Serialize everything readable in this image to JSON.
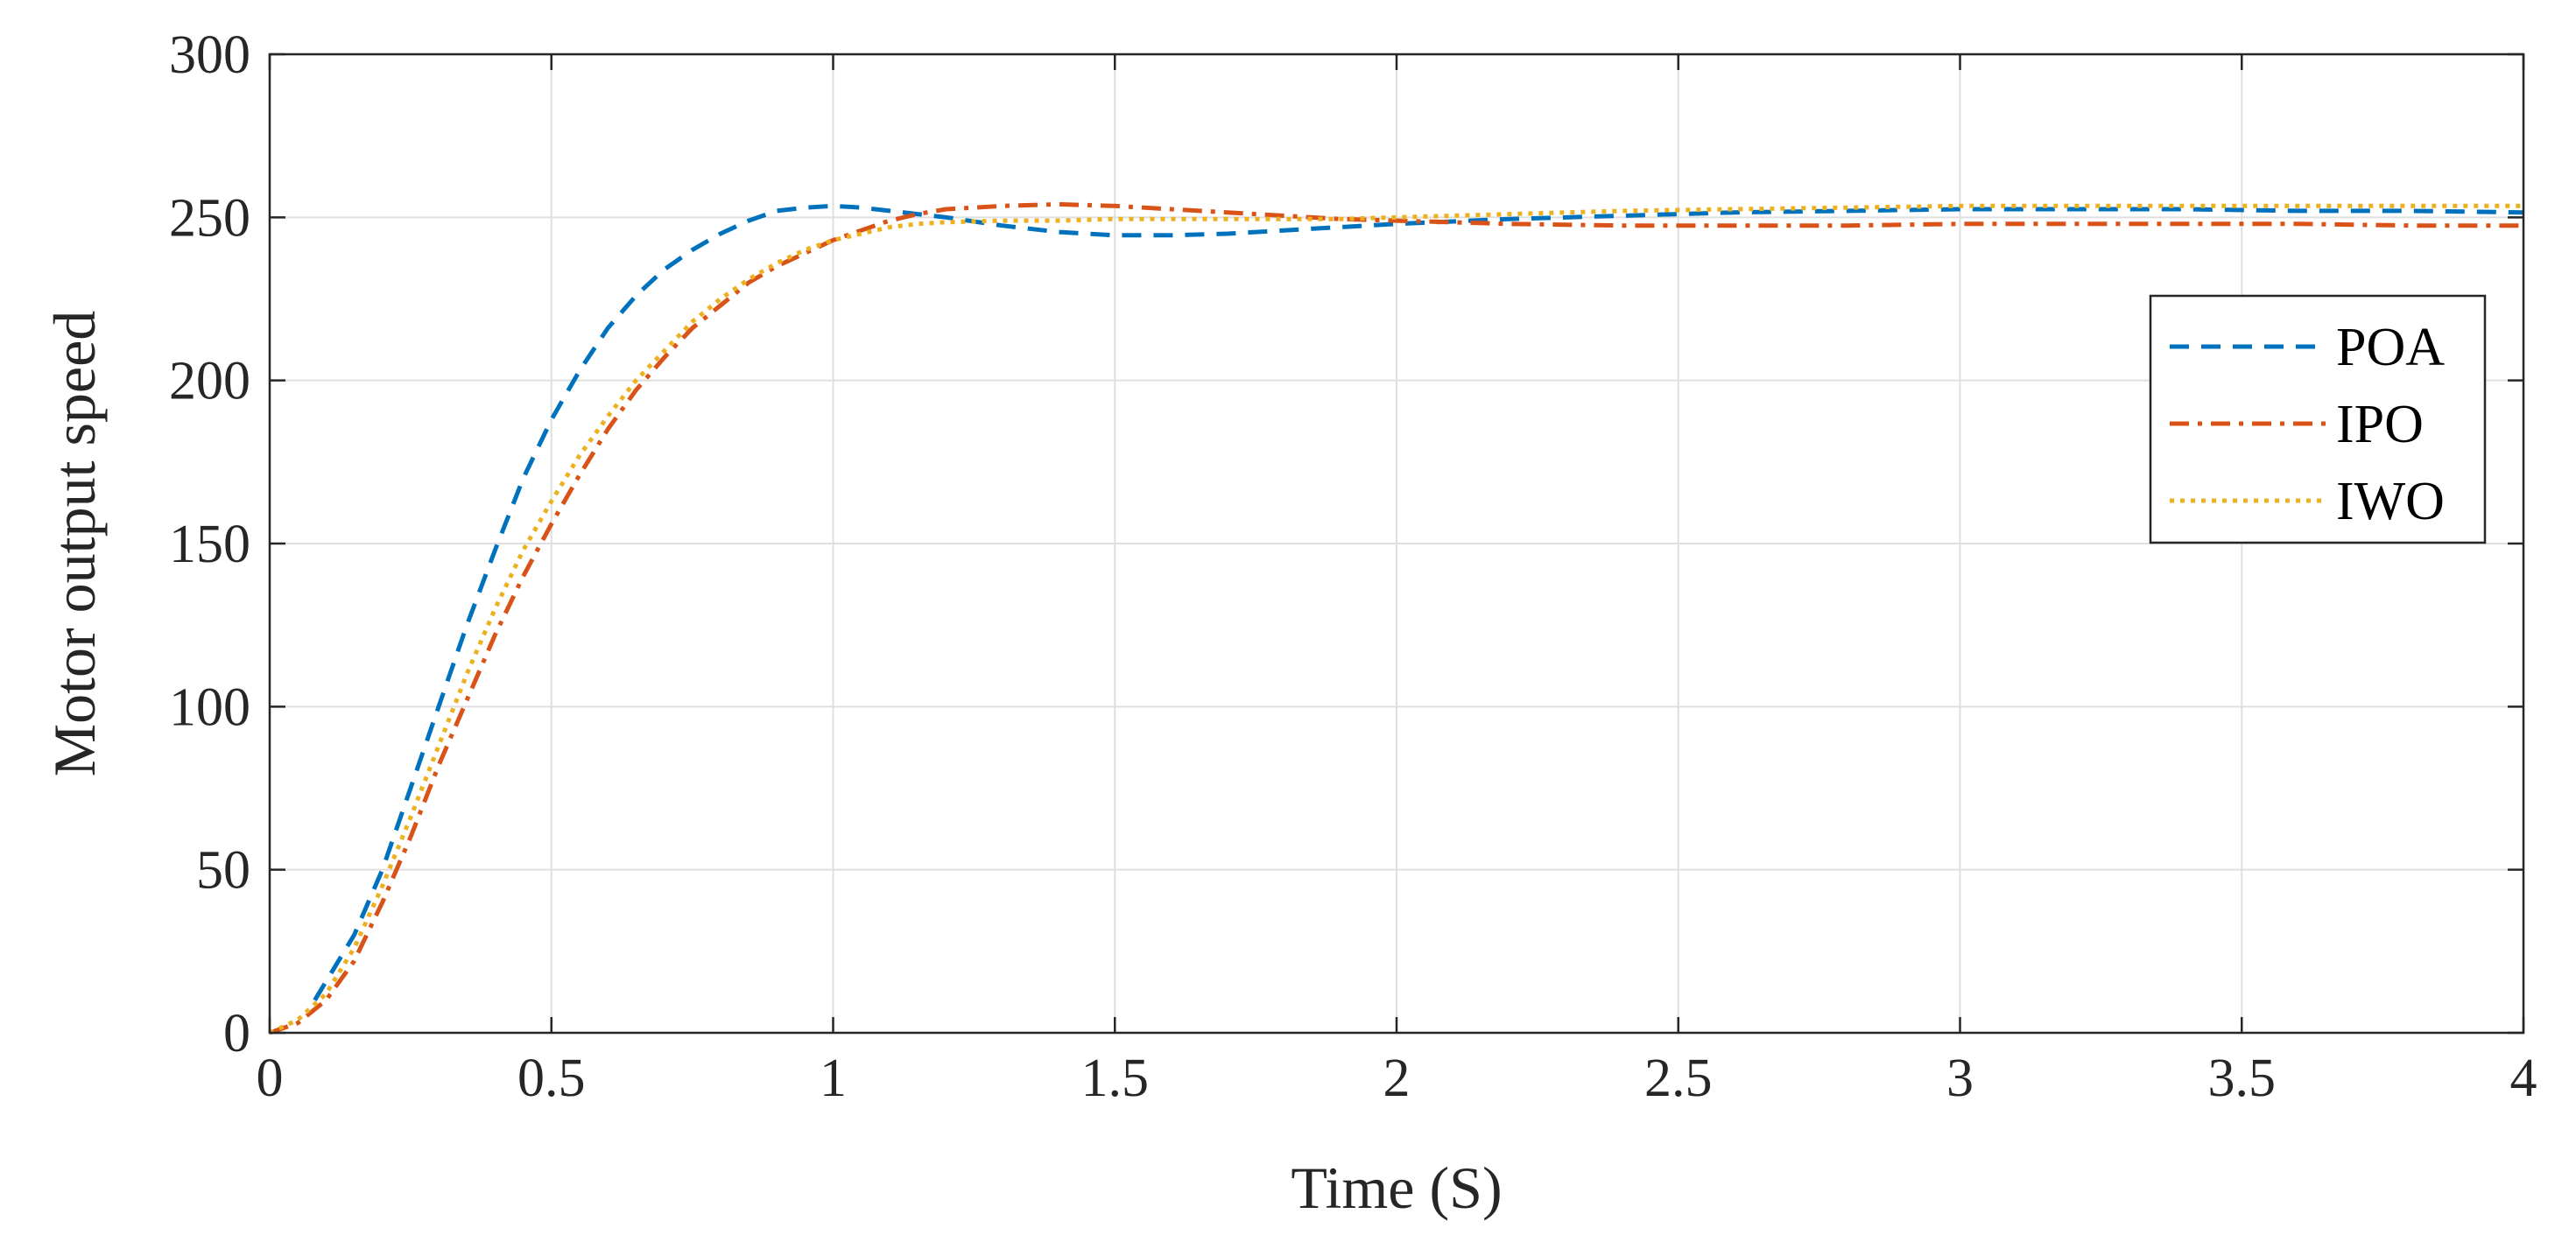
{
  "chart_data": {
    "type": "line",
    "title": "",
    "xlabel": "Time (S)",
    "ylabel": "Motor output speed",
    "xlim": [
      0,
      4
    ],
    "ylim": [
      0,
      300
    ],
    "xticks": [
      0,
      0.5,
      1,
      1.5,
      2,
      2.5,
      3,
      3.5,
      4
    ],
    "yticks": [
      0,
      50,
      100,
      150,
      200,
      250,
      300
    ],
    "xtick_labels": [
      "0",
      "0.5",
      "1",
      "1.5",
      "2",
      "2.5",
      "3",
      "3.5",
      "4"
    ],
    "ytick_labels": [
      "0",
      "50",
      "100",
      "150",
      "200",
      "250",
      "300"
    ],
    "grid": true,
    "legend_position": "right",
    "series": [
      {
        "name": "POA",
        "color": "#0072BD",
        "style": "dashed",
        "x": [
          0.08,
          0.15,
          0.2,
          0.25,
          0.3,
          0.35,
          0.4,
          0.45,
          0.5,
          0.55,
          0.6,
          0.65,
          0.7,
          0.75,
          0.8,
          0.85,
          0.9,
          0.95,
          1.0,
          1.05,
          1.1,
          1.15,
          1.2,
          1.3,
          1.4,
          1.5,
          1.6,
          1.7,
          1.8,
          1.9,
          2.0,
          2.2,
          2.4,
          2.6,
          2.8,
          3.0,
          3.2,
          3.4,
          3.6,
          3.8,
          4.0
        ],
        "y": [
          10,
          30,
          50,
          75,
          100,
          125,
          148,
          170,
          188,
          203,
          216,
          226,
          234,
          240,
          245,
          249,
          252,
          253,
          253.5,
          253,
          252,
          251,
          250,
          247.5,
          245.5,
          244.5,
          244.5,
          245,
          246,
          247,
          248,
          249.5,
          250.5,
          251.5,
          252,
          252.5,
          252.5,
          252.5,
          252,
          252,
          251.5
        ]
      },
      {
        "name": "IPO",
        "color": "#D95319",
        "style": "dash-dot",
        "x": [
          0.0,
          0.05,
          0.1,
          0.15,
          0.2,
          0.25,
          0.3,
          0.35,
          0.4,
          0.45,
          0.5,
          0.55,
          0.6,
          0.65,
          0.7,
          0.75,
          0.8,
          0.85,
          0.9,
          0.95,
          1.0,
          1.05,
          1.1,
          1.15,
          1.2,
          1.25,
          1.3,
          1.4,
          1.5,
          1.6,
          1.7,
          1.8,
          1.9,
          2.0,
          2.2,
          2.4,
          2.6,
          2.8,
          3.0,
          3.2,
          3.4,
          3.6,
          3.8,
          4.0
        ],
        "y": [
          0,
          3,
          10,
          22,
          40,
          60,
          82,
          102,
          122,
          140,
          156,
          171,
          185,
          197,
          207,
          216,
          223,
          230,
          235,
          239,
          243,
          246,
          249,
          251,
          252.5,
          253,
          253.5,
          254,
          253.5,
          252.5,
          251.5,
          250.5,
          249.5,
          249,
          248,
          247.5,
          247.5,
          247.5,
          248,
          248,
          248,
          248,
          247.5,
          247.5
        ]
      },
      {
        "name": "IWO",
        "color": "#EDB120",
        "style": "dotted",
        "x": [
          0.0,
          0.05,
          0.1,
          0.15,
          0.2,
          0.25,
          0.3,
          0.35,
          0.4,
          0.45,
          0.5,
          0.55,
          0.6,
          0.65,
          0.7,
          0.75,
          0.8,
          0.85,
          0.9,
          0.95,
          1.0,
          1.05,
          1.1,
          1.15,
          1.2,
          1.3,
          1.4,
          1.5,
          1.6,
          1.7,
          1.8,
          1.9,
          2.0,
          2.2,
          2.4,
          2.6,
          2.8,
          3.0,
          3.2,
          3.4,
          3.6,
          3.8,
          4.0
        ],
        "y": [
          0,
          4,
          12,
          26,
          45,
          66,
          88,
          110,
          130,
          148,
          163,
          177,
          189,
          200,
          209,
          218,
          225,
          231,
          236,
          240,
          243,
          245,
          247,
          248,
          248.5,
          249,
          249,
          249.5,
          249.5,
          249.5,
          249.5,
          249.5,
          250,
          251,
          252,
          252.5,
          253,
          253.5,
          253.5,
          253.5,
          253.5,
          253.5,
          253.5
        ]
      }
    ]
  }
}
